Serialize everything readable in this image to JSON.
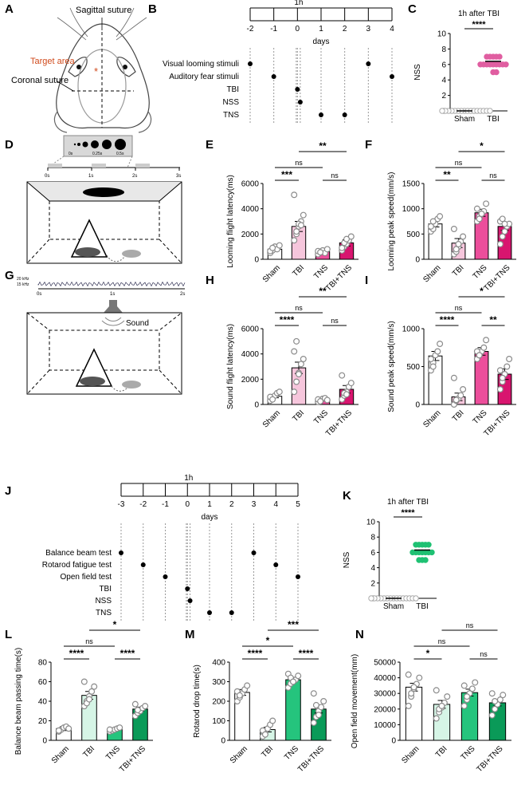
{
  "colors": {
    "sham": "#ffffff",
    "tbi_b": "#f6c6dc",
    "tns_b": "#ec4e9b",
    "tbitns_b": "#d8156f",
    "tbi_d": "#d6f5e6",
    "tns_d": "#25c47d",
    "tbitns_d": "#0a9a58",
    "dot": "#8b8b8b",
    "nss_pink": "#e05ea1",
    "nss_green": "#1fc173",
    "target": "#d04a1c"
  },
  "panels": {
    "A": "A",
    "B": "B",
    "C": "C",
    "D": "D",
    "E": "E",
    "F": "F",
    "G": "G",
    "H": "H",
    "I": "I",
    "J": "J",
    "K": "K",
    "L": "L",
    "M": "M",
    "N": "N"
  },
  "skull": {
    "sagittal": "Sagittal suture",
    "target": "Target area",
    "coronal": "Coronal suture",
    "asterisk": "*"
  },
  "timelineB": {
    "marker": "1h",
    "ticks": [
      "-2",
      "-1",
      "0",
      "1",
      "2",
      "3",
      "4"
    ],
    "unit": "days",
    "rows": [
      "Visual looming stimuli",
      "Auditory fear stimuli",
      "TBI",
      "NSS",
      "TNS"
    ]
  },
  "timelineJ": {
    "marker": "1h",
    "ticks": [
      "-3",
      "-2",
      "-1",
      "0",
      "1",
      "2",
      "3",
      "4",
      "5"
    ],
    "unit": "days",
    "rows": [
      "Balance beam test",
      "Rotarod fatigue test",
      "Open field test",
      "TBI",
      "NSS",
      "TNS"
    ]
  },
  "looming": {
    "times": [
      "0s",
      "0.25s",
      "0.5s"
    ],
    "axis": [
      "0s",
      "1s",
      "2s",
      "3s"
    ]
  },
  "sound": {
    "freqs": [
      "20 kHz",
      "15 kHz"
    ],
    "axis": [
      "0s",
      "1s",
      "2s"
    ],
    "label": "Sound"
  },
  "chart_data": [
    {
      "id": "C",
      "type": "scatter",
      "title": "1h after TBI",
      "ylabel": "NSS",
      "categories": [
        "Sham",
        "TBI"
      ],
      "ylim": [
        0,
        10
      ],
      "yticks": [
        "0",
        "2",
        "4",
        "6",
        "8",
        "10"
      ],
      "series": [
        {
          "name": "Sham",
          "mean": 0,
          "points": [
            0,
            0,
            0,
            0,
            0,
            0,
            0,
            0,
            0,
            0,
            0,
            0,
            0,
            0,
            0,
            0
          ]
        },
        {
          "name": "TBI",
          "mean": 6.4,
          "points": [
            7,
            7,
            7,
            6,
            6,
            6,
            6,
            6,
            7,
            6,
            5,
            6,
            7,
            6,
            5,
            6
          ]
        }
      ],
      "stats": [
        "****"
      ]
    },
    {
      "id": "E",
      "type": "bar",
      "ylabel": "Looming flight latency(ms)",
      "categories": [
        "Sham",
        "TBI",
        "TNS",
        "TBI+TNS"
      ],
      "ylim": [
        0,
        6000
      ],
      "yticks": [
        "0",
        "2000",
        "4000",
        "6000"
      ],
      "values": [
        800,
        2600,
        600,
        1300
      ],
      "errors": [
        150,
        400,
        100,
        250
      ],
      "points": [
        [
          500,
          700,
          1000,
          800,
          1100,
          650,
          900
        ],
        [
          1500,
          2000,
          2600,
          3000,
          3500,
          5100,
          2200,
          2800,
          2700
        ],
        [
          400,
          600,
          700,
          500,
          800,
          650,
          550
        ],
        [
          700,
          1000,
          1200,
          1500,
          1800,
          900,
          1300,
          1600
        ]
      ],
      "stats": [
        "***",
        "ns",
        "ns",
        "**"
      ]
    },
    {
      "id": "F",
      "type": "bar",
      "ylabel": "Looming peak speed(mm/s)",
      "categories": [
        "Sham",
        "TBI",
        "TNS",
        "TBI+TNS"
      ],
      "ylim": [
        0,
        1500
      ],
      "yticks": [
        "0",
        "500",
        "1000",
        "1500"
      ],
      "values": [
        700,
        320,
        920,
        650
      ],
      "errors": [
        60,
        90,
        70,
        80
      ],
      "points": [
        [
          550,
          600,
          700,
          800,
          850,
          650,
          750
        ],
        [
          100,
          150,
          250,
          350,
          450,
          600,
          200,
          300
        ],
        [
          750,
          850,
          900,
          950,
          1100,
          1000,
          800,
          900
        ],
        [
          300,
          450,
          550,
          650,
          700,
          750,
          800,
          700
        ]
      ],
      "stats": [
        "**",
        "ns",
        "ns",
        "*"
      ]
    },
    {
      "id": "H",
      "type": "bar",
      "ylabel": "Sound flight latency(ms)",
      "categories": [
        "Sham",
        "TBI",
        "TNS",
        "TBI+TNS"
      ],
      "ylim": [
        0,
        6000
      ],
      "yticks": [
        "0",
        "2000",
        "4000",
        "6000"
      ],
      "values": [
        650,
        2900,
        400,
        1200
      ],
      "errors": [
        120,
        450,
        80,
        300
      ],
      "points": [
        [
          300,
          500,
          700,
          900,
          1000,
          600,
          400
        ],
        [
          1000,
          1800,
          2500,
          3200,
          3600,
          4200,
          5000,
          2400
        ],
        [
          200,
          300,
          450,
          500,
          350,
          400,
          250
        ],
        [
          400,
          700,
          1000,
          1400,
          1700,
          2300,
          900,
          800
        ]
      ],
      "stats": [
        "****",
        "ns",
        "ns",
        "**"
      ]
    },
    {
      "id": "I",
      "type": "bar",
      "ylabel": "Sound peak speed(mm/s)",
      "categories": [
        "Sham",
        "TBI",
        "TNS",
        "TBI+TNS"
      ],
      "ylim": [
        0,
        1000
      ],
      "yticks": [
        "0",
        "500",
        "1000"
      ],
      "values": [
        640,
        100,
        700,
        400
      ],
      "errors": [
        60,
        50,
        50,
        70
      ],
      "points": [
        [
          450,
          550,
          650,
          700,
          800,
          600,
          500
        ],
        [
          0,
          50,
          80,
          120,
          200,
          350,
          60
        ],
        [
          600,
          650,
          700,
          750,
          850,
          700,
          650
        ],
        [
          200,
          300,
          400,
          500,
          600,
          450,
          350
        ]
      ],
      "stats": [
        "****",
        "ns",
        "**",
        "*"
      ]
    },
    {
      "id": "K",
      "type": "scatter",
      "title": "1h after TBI",
      "ylabel": "NSS",
      "categories": [
        "Sham",
        "TBI"
      ],
      "ylim": [
        0,
        10
      ],
      "yticks": [
        "0",
        "2",
        "4",
        "6",
        "8",
        "10"
      ],
      "series": [
        {
          "name": "Sham",
          "mean": 0,
          "points": [
            0,
            0,
            0,
            0,
            0,
            0,
            0,
            0,
            0,
            0,
            0,
            0,
            0,
            0,
            0
          ]
        },
        {
          "name": "TBI",
          "mean": 6.3,
          "points": [
            7,
            7,
            7,
            6,
            6,
            6,
            6,
            5,
            5,
            6,
            7,
            6,
            5,
            6,
            7
          ]
        }
      ],
      "stats": [
        "****"
      ]
    },
    {
      "id": "L",
      "type": "bar",
      "ylabel": "Balance beam passing time(s)",
      "categories": [
        "Sham",
        "TBI",
        "TNS",
        "TBI+TNS"
      ],
      "ylim": [
        0,
        80
      ],
      "yticks": [
        "0",
        "20",
        "40",
        "60",
        "80"
      ],
      "values": [
        12,
        46,
        11,
        32
      ],
      "errors": [
        2,
        4,
        1.5,
        2
      ],
      "points": [
        [
          9,
          11,
          13,
          14,
          12,
          10
        ],
        [
          35,
          40,
          45,
          50,
          55,
          60,
          38,
          42
        ],
        [
          9,
          10,
          11,
          12,
          13,
          11
        ],
        [
          25,
          28,
          30,
          33,
          35,
          37,
          31
        ]
      ],
      "stats": [
        "****",
        "ns",
        "****",
        "*"
      ]
    },
    {
      "id": "M",
      "type": "bar",
      "ylabel": "Rotarod drop time(s)",
      "categories": [
        "Sham",
        "TBI",
        "TNS",
        "TBI+TNS"
      ],
      "ylim": [
        0,
        400
      ],
      "yticks": [
        "0",
        "100",
        "200",
        "300",
        "400"
      ],
      "values": [
        245,
        55,
        310,
        160
      ],
      "errors": [
        15,
        12,
        12,
        20
      ],
      "points": [
        [
          200,
          220,
          240,
          260,
          280,
          250,
          230
        ],
        [
          20,
          40,
          60,
          80,
          100,
          50,
          30
        ],
        [
          270,
          290,
          300,
          310,
          330,
          340,
          320,
          300
        ],
        [
          90,
          120,
          150,
          170,
          200,
          240,
          180,
          130
        ]
      ],
      "stats": [
        "****",
        "*",
        "****",
        "***"
      ]
    },
    {
      "id": "N",
      "type": "bar",
      "ylabel": "Open field movement(mm)",
      "categories": [
        "Sham",
        "TBI",
        "TNS",
        "TBI+TNS"
      ],
      "ylim": [
        0,
        50000
      ],
      "yticks": [
        "0",
        "10000",
        "20000",
        "30000",
        "40000",
        "50000"
      ],
      "values": [
        34000,
        23000,
        30500,
        24000
      ],
      "errors": [
        2500,
        2500,
        2200,
        2000
      ],
      "points": [
        [
          22000,
          28000,
          33000,
          36000,
          40000,
          42000,
          30000,
          34000
        ],
        [
          14000,
          18000,
          21000,
          24000,
          28000,
          32000,
          20000,
          22000
        ],
        [
          22000,
          26000,
          30000,
          33000,
          37000,
          35000,
          28000
        ],
        [
          16000,
          20000,
          23000,
          26000,
          29000,
          30000,
          25000
        ]
      ],
      "stats": [
        "*",
        "ns",
        "ns",
        "ns"
      ]
    }
  ]
}
